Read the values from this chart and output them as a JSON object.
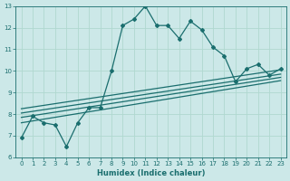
{
  "title": "",
  "xlabel": "Humidex (Indice chaleur)",
  "ylabel": "",
  "bg_color": "#cce8e8",
  "grid_color": "#b0d8d0",
  "line_color": "#1a6e6e",
  "xlim": [
    -0.5,
    23.5
  ],
  "ylim": [
    6,
    13
  ],
  "xticks": [
    0,
    1,
    2,
    3,
    4,
    5,
    6,
    7,
    8,
    9,
    10,
    11,
    12,
    13,
    14,
    15,
    16,
    17,
    18,
    19,
    20,
    21,
    22,
    23
  ],
  "yticks": [
    6,
    7,
    8,
    9,
    10,
    11,
    12,
    13
  ],
  "main_x": [
    0,
    1,
    2,
    3,
    4,
    5,
    6,
    7,
    8,
    9,
    10,
    11,
    12,
    13,
    14,
    15,
    16,
    17,
    18,
    19,
    20,
    21,
    22,
    23
  ],
  "main_y": [
    6.9,
    7.9,
    7.6,
    7.5,
    6.5,
    7.6,
    8.3,
    8.3,
    10.0,
    12.1,
    12.4,
    13.0,
    12.1,
    12.1,
    11.5,
    12.3,
    11.9,
    11.1,
    10.7,
    9.5,
    10.1,
    10.3,
    9.8,
    10.1
  ],
  "line1_x": [
    0,
    23
  ],
  "line1_y": [
    7.6,
    9.55
  ],
  "line2_x": [
    0,
    23
  ],
  "line2_y": [
    7.85,
    9.7
  ],
  "line3_x": [
    0,
    23
  ],
  "line3_y": [
    8.05,
    9.85
  ],
  "line4_x": [
    0,
    23
  ],
  "line4_y": [
    8.25,
    10.05
  ]
}
